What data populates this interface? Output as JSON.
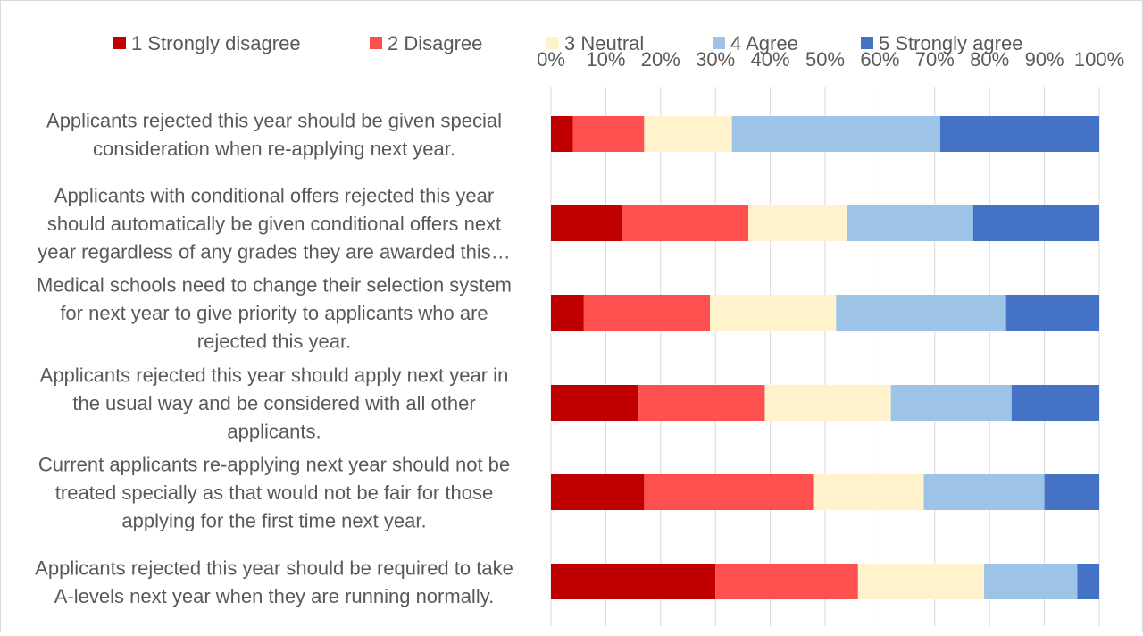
{
  "chart_data": {
    "type": "bar",
    "orientation": "horizontal",
    "stacked": true,
    "percent": true,
    "title": "",
    "xlabel": "",
    "ylabel": "",
    "xlim": [
      0,
      100
    ],
    "x_ticks": [
      "0%",
      "10%",
      "20%",
      "30%",
      "40%",
      "50%",
      "60%",
      "70%",
      "80%",
      "90%",
      "100%"
    ],
    "grid": true,
    "legend_position": "top",
    "categories": [
      [
        "Applicants rejected this year should be given special",
        "consideration when re-applying next year."
      ],
      [
        "Applicants with conditional offers rejected this year",
        "should automatically be given conditional offers next",
        "year regardless of any grades they are awarded this…"
      ],
      [
        "Medical schools need to change their selection system",
        "for next year to give priority to applicants who are",
        "rejected this year."
      ],
      [
        "Applicants rejected this year should apply next year in",
        "the usual way and be considered with all other",
        "applicants."
      ],
      [
        "Current applicants re-applying next year should not be",
        "treated specially as that would not be fair for those",
        "applying for the first time next year."
      ],
      [
        "Applicants rejected this year should be required to take",
        "A-levels next year when they are running normally."
      ]
    ],
    "series": [
      {
        "name": "1 Strongly disagree",
        "color": "#c00000",
        "values": [
          4,
          13,
          6,
          16,
          17,
          30
        ]
      },
      {
        "name": "2 Disagree",
        "color": "#ff5050",
        "values": [
          13,
          23,
          23,
          23,
          31,
          26
        ]
      },
      {
        "name": "3 Neutral",
        "color": "#fff2cc",
        "values": [
          16,
          18,
          23,
          23,
          20,
          23
        ]
      },
      {
        "name": "4 Agree",
        "color": "#9dc3e6",
        "values": [
          38,
          23,
          31,
          22,
          22,
          17
        ]
      },
      {
        "name": "5 Strongly agree",
        "color": "#4472c4",
        "values": [
          29,
          23,
          17,
          16,
          10,
          4
        ]
      }
    ]
  }
}
